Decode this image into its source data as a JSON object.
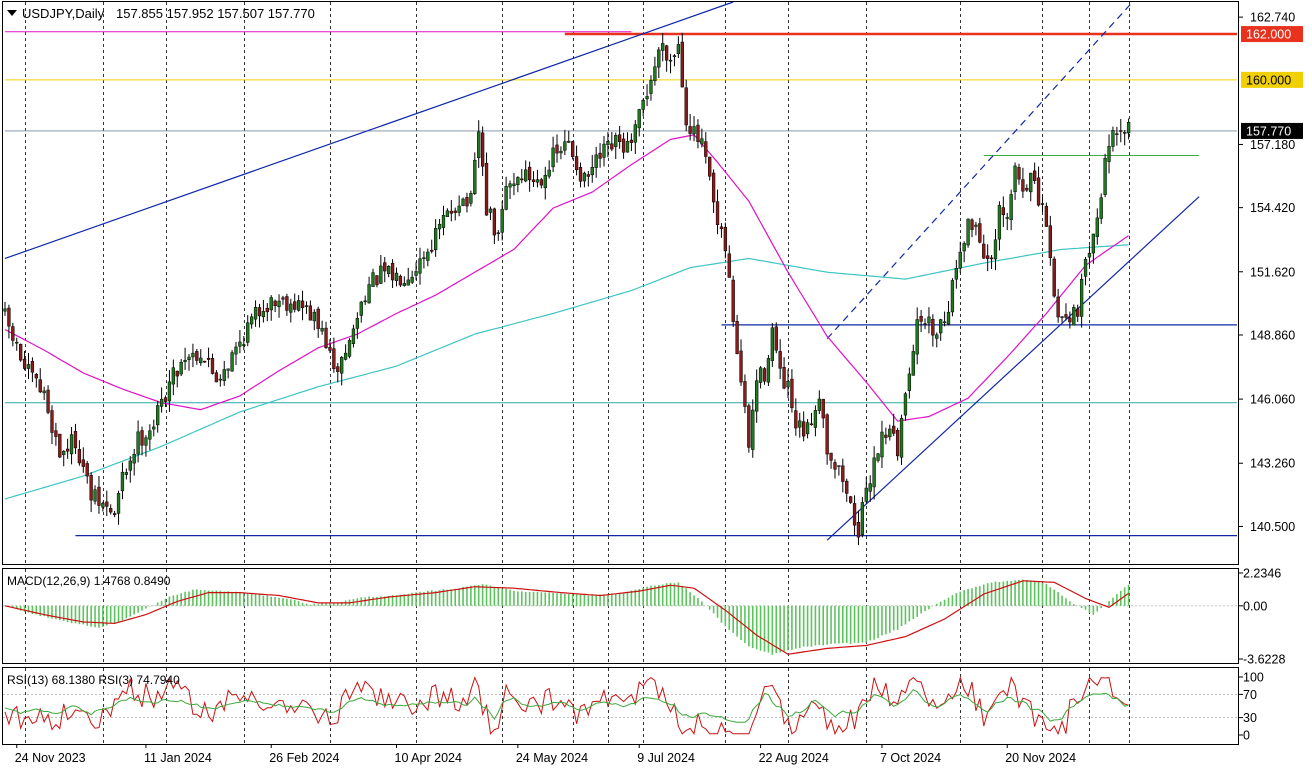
{
  "header": {
    "symbol_label": "USDJPY,Daily",
    "ohlc_label": "157.855 157.952 157.507 157.770"
  },
  "colors": {
    "candle_up": "#1f7a1f",
    "candle_down": "#8b1a1a",
    "ma_fast": "#e011c8",
    "ma_slow": "#3fc4c4",
    "trendline": "#1028a8",
    "resistance_red": "#e8321e",
    "level_yellow": "#f0d000",
    "price_badge": "#000000",
    "macd_hist": "#5cc45c",
    "macd_signal": "#cc1111",
    "rsi_13": "#cc1111",
    "rsi_3": "#3aa83a"
  },
  "panels": {
    "macd_label": "MACD(12,26,9) 1.4768 0.8490",
    "rsi_label": "RSI(13) 68.1380  RSI(3) 74.7940"
  },
  "chart_data": [
    {
      "type": "candlestick",
      "symbol": "USDJPY",
      "timeframe": "Daily",
      "last_price": 157.77,
      "ylim": [
        138.86,
        163.4
      ],
      "y_ticks": [
        "162.740",
        "157.180",
        "154.420",
        "151.620",
        "148.860",
        "146.060",
        "143.260",
        "140.500"
      ],
      "x_ticks": [
        "24 Nov 2023",
        "11 Jan 2024",
        "26 Feb 2024",
        "10 Apr 2024",
        "24 May 2024",
        "9 Jul 2024",
        "22 Aug 2024",
        "7 Oct 2024",
        "20 Nov 2024"
      ],
      "price_labels": [
        {
          "text": "162.000",
          "value": 162.0,
          "color": "#e8321e",
          "text_color": "#ffffff"
        },
        {
          "text": "160.000",
          "value": 160.0,
          "color": "#f0d000",
          "text_color": "#000000"
        },
        {
          "text": "157.770",
          "value": 157.77,
          "color": "#000000",
          "text_color": "#ffffff"
        }
      ],
      "anchors": [
        {
          "d": 0,
          "c": 149.6
        },
        {
          "d": 5,
          "c": 147.4
        },
        {
          "d": 10,
          "c": 146.2
        },
        {
          "d": 14,
          "c": 143.7
        },
        {
          "d": 18,
          "c": 144.3
        },
        {
          "d": 22,
          "c": 141.8
        },
        {
          "d": 25,
          "c": 141.4
        },
        {
          "d": 28,
          "c": 141.0
        },
        {
          "d": 30,
          "c": 142.6
        },
        {
          "d": 34,
          "c": 144.3
        },
        {
          "d": 38,
          "c": 145.0
        },
        {
          "d": 42,
          "c": 146.8
        },
        {
          "d": 46,
          "c": 148.0
        },
        {
          "d": 50,
          "c": 148.1
        },
        {
          "d": 54,
          "c": 147.0
        },
        {
          "d": 58,
          "c": 147.9
        },
        {
          "d": 62,
          "c": 149.2
        },
        {
          "d": 66,
          "c": 150.2
        },
        {
          "d": 70,
          "c": 150.4
        },
        {
          "d": 74,
          "c": 150.3
        },
        {
          "d": 78,
          "c": 149.8
        },
        {
          "d": 82,
          "c": 148.6
        },
        {
          "d": 84,
          "c": 147.1
        },
        {
          "d": 88,
          "c": 148.5
        },
        {
          "d": 92,
          "c": 150.8
        },
        {
          "d": 96,
          "c": 151.5
        },
        {
          "d": 100,
          "c": 151.4
        },
        {
          "d": 104,
          "c": 151.7
        },
        {
          "d": 108,
          "c": 152.6
        },
        {
          "d": 112,
          "c": 153.8
        },
        {
          "d": 116,
          "c": 154.8
        },
        {
          "d": 119,
          "c": 154.6
        },
        {
          "d": 121,
          "c": 157.7
        },
        {
          "d": 123,
          "c": 154.4
        },
        {
          "d": 126,
          "c": 153.0
        },
        {
          "d": 128,
          "c": 155.3
        },
        {
          "d": 132,
          "c": 155.9
        },
        {
          "d": 136,
          "c": 155.6
        },
        {
          "d": 140,
          "c": 156.6
        },
        {
          "d": 144,
          "c": 157.2
        },
        {
          "d": 148,
          "c": 155.5
        },
        {
          "d": 152,
          "c": 156.6
        },
        {
          "d": 156,
          "c": 157.2
        },
        {
          "d": 160,
          "c": 157.0
        },
        {
          "d": 163,
          "c": 159.0
        },
        {
          "d": 166,
          "c": 160.6
        },
        {
          "d": 168,
          "c": 161.7
        },
        {
          "d": 170,
          "c": 160.9
        },
        {
          "d": 172,
          "c": 161.6
        },
        {
          "d": 174,
          "c": 158.4
        },
        {
          "d": 176,
          "c": 157.6
        },
        {
          "d": 178,
          "c": 157.1
        },
        {
          "d": 180,
          "c": 155.5
        },
        {
          "d": 182,
          "c": 153.5
        },
        {
          "d": 184,
          "c": 152.6
        },
        {
          "d": 186,
          "c": 149.6
        },
        {
          "d": 188,
          "c": 146.8
        },
        {
          "d": 190,
          "c": 144.0
        },
        {
          "d": 192,
          "c": 146.9
        },
        {
          "d": 194,
          "c": 147.2
        },
        {
          "d": 196,
          "c": 149.1
        },
        {
          "d": 198,
          "c": 147.0
        },
        {
          "d": 200,
          "c": 146.4
        },
        {
          "d": 202,
          "c": 144.7
        },
        {
          "d": 205,
          "c": 144.6
        },
        {
          "d": 208,
          "c": 146.4
        },
        {
          "d": 210,
          "c": 144.0
        },
        {
          "d": 212,
          "c": 143.2
        },
        {
          "d": 214,
          "c": 142.6
        },
        {
          "d": 216,
          "c": 141.3
        },
        {
          "d": 218,
          "c": 140.4
        },
        {
          "d": 220,
          "c": 141.8
        },
        {
          "d": 222,
          "c": 143.5
        },
        {
          "d": 224,
          "c": 144.4
        },
        {
          "d": 226,
          "c": 145.0
        },
        {
          "d": 228,
          "c": 143.6
        },
        {
          "d": 230,
          "c": 146.5
        },
        {
          "d": 232,
          "c": 148.5
        },
        {
          "d": 234,
          "c": 149.7
        },
        {
          "d": 237,
          "c": 149.1
        },
        {
          "d": 240,
          "c": 149.6
        },
        {
          "d": 242,
          "c": 151.0
        },
        {
          "d": 244,
          "c": 152.8
        },
        {
          "d": 246,
          "c": 153.6
        },
        {
          "d": 248,
          "c": 153.7
        },
        {
          "d": 250,
          "c": 152.5
        },
        {
          "d": 252,
          "c": 151.8
        },
        {
          "d": 254,
          "c": 154.1
        },
        {
          "d": 256,
          "c": 153.8
        },
        {
          "d": 258,
          "c": 156.1
        },
        {
          "d": 260,
          "c": 155.3
        },
        {
          "d": 262,
          "c": 155.8
        },
        {
          "d": 264,
          "c": 154.6
        },
        {
          "d": 266,
          "c": 153.8
        },
        {
          "d": 268,
          "c": 150.4
        },
        {
          "d": 270,
          "c": 149.6
        },
        {
          "d": 272,
          "c": 149.8
        },
        {
          "d": 274,
          "c": 150.1
        },
        {
          "d": 276,
          "c": 151.8
        },
        {
          "d": 278,
          "c": 153.7
        },
        {
          "d": 280,
          "c": 155.0
        },
        {
          "d": 282,
          "c": 157.5
        },
        {
          "d": 284,
          "c": 157.2
        },
        {
          "d": 286,
          "c": 157.9
        },
        {
          "d": 287,
          "c": 157.77
        }
      ],
      "ma_fast": [
        {
          "d": 0,
          "v": 149.1
        },
        {
          "d": 10,
          "v": 148.2
        },
        {
          "d": 20,
          "v": 147.2
        },
        {
          "d": 30,
          "v": 146.5
        },
        {
          "d": 40,
          "v": 145.9
        },
        {
          "d": 50,
          "v": 145.6
        },
        {
          "d": 60,
          "v": 146.2
        },
        {
          "d": 70,
          "v": 147.3
        },
        {
          "d": 80,
          "v": 148.3
        },
        {
          "d": 90,
          "v": 148.9
        },
        {
          "d": 100,
          "v": 149.8
        },
        {
          "d": 110,
          "v": 150.6
        },
        {
          "d": 120,
          "v": 151.6
        },
        {
          "d": 130,
          "v": 152.6
        },
        {
          "d": 140,
          "v": 154.4
        },
        {
          "d": 150,
          "v": 155.1
        },
        {
          "d": 160,
          "v": 156.3
        },
        {
          "d": 170,
          "v": 157.4
        },
        {
          "d": 176,
          "v": 157.6
        },
        {
          "d": 182,
          "v": 156.4
        },
        {
          "d": 190,
          "v": 154.7
        },
        {
          "d": 200,
          "v": 151.6
        },
        {
          "d": 210,
          "v": 148.8
        },
        {
          "d": 220,
          "v": 146.8
        },
        {
          "d": 228,
          "v": 145.1
        },
        {
          "d": 236,
          "v": 145.3
        },
        {
          "d": 246,
          "v": 146.1
        },
        {
          "d": 256,
          "v": 147.9
        },
        {
          "d": 266,
          "v": 149.8
        },
        {
          "d": 276,
          "v": 151.9
        },
        {
          "d": 287,
          "v": 153.2
        }
      ],
      "ma_slow": [
        {
          "d": 0,
          "v": 141.7
        },
        {
          "d": 20,
          "v": 142.7
        },
        {
          "d": 40,
          "v": 144.0
        },
        {
          "d": 60,
          "v": 145.5
        },
        {
          "d": 80,
          "v": 146.6
        },
        {
          "d": 100,
          "v": 147.5
        },
        {
          "d": 120,
          "v": 148.9
        },
        {
          "d": 140,
          "v": 149.8
        },
        {
          "d": 160,
          "v": 150.8
        },
        {
          "d": 175,
          "v": 151.8
        },
        {
          "d": 190,
          "v": 152.2
        },
        {
          "d": 210,
          "v": 151.6
        },
        {
          "d": 230,
          "v": 151.3
        },
        {
          "d": 250,
          "v": 152.0
        },
        {
          "d": 270,
          "v": 152.6
        },
        {
          "d": 287,
          "v": 152.8
        }
      ],
      "horizontal_levels": [
        {
          "value": 162.0,
          "color": "#e8321e",
          "from_d": 143,
          "to_d": 320,
          "width": 2.5
        },
        {
          "value": 160.0,
          "color": "#f0d000",
          "from_d": 0,
          "to_d": 320,
          "width": 1
        },
        {
          "value": 157.77,
          "color": "#7a8aa0",
          "from_d": 0,
          "to_d": 320,
          "width": 0.8
        },
        {
          "value": 162.1,
          "color": "#e011c8",
          "from_d": 0,
          "to_d": 160,
          "width": 1
        },
        {
          "value": 156.7,
          "color": "#3fae3f",
          "from_d": 250,
          "to_d": 305,
          "width": 1
        },
        {
          "value": 149.3,
          "color": "#1028a8",
          "from_d": 183,
          "to_d": 320,
          "width": 1.2
        },
        {
          "value": 145.9,
          "color": "#2aa8a8",
          "from_d": 0,
          "to_d": 320,
          "width": 1
        },
        {
          "value": 140.1,
          "color": "#1028a8",
          "from_d": 18,
          "to_d": 320,
          "width": 1.2
        }
      ],
      "trendlines": [
        {
          "d1": 0,
          "v1": 152.2,
          "d2": 186,
          "v2": 163.4,
          "color": "#1028a8",
          "dash": false
        },
        {
          "d1": 210,
          "v1": 148.7,
          "d2": 288,
          "v2": 163.4,
          "color": "#1028a8",
          "dash": true
        },
        {
          "d1": 210,
          "v1": 139.9,
          "d2": 305,
          "v2": 154.9,
          "color": "#1028a8",
          "dash": false
        }
      ],
      "vertical_markers_d": [
        5,
        25,
        41,
        61,
        83,
        105,
        127,
        145,
        154,
        163,
        184,
        200,
        220,
        244,
        265,
        277,
        287
      ]
    },
    {
      "type": "bar",
      "name": "MACD",
      "label": "MACD(12,26,9) 1.4768 0.8490",
      "macd": 1.4768,
      "signal": 0.849,
      "ylim": [
        -3.6228,
        2.2346
      ],
      "y_ticks": [
        "2.2346",
        "0.00",
        "-3.6228"
      ],
      "hist": [
        {
          "d": 0,
          "v": 0.0
        },
        {
          "d": 8,
          "v": -0.6
        },
        {
          "d": 16,
          "v": -1.1
        },
        {
          "d": 24,
          "v": -1.5
        },
        {
          "d": 30,
          "v": -1.0
        },
        {
          "d": 36,
          "v": -0.2
        },
        {
          "d": 42,
          "v": 0.6
        },
        {
          "d": 48,
          "v": 1.1
        },
        {
          "d": 56,
          "v": 1.0
        },
        {
          "d": 64,
          "v": 0.8
        },
        {
          "d": 72,
          "v": 0.5
        },
        {
          "d": 78,
          "v": 0.1
        },
        {
          "d": 84,
          "v": 0.2
        },
        {
          "d": 92,
          "v": 0.6
        },
        {
          "d": 100,
          "v": 0.7
        },
        {
          "d": 108,
          "v": 1.0
        },
        {
          "d": 116,
          "v": 1.2
        },
        {
          "d": 122,
          "v": 1.5
        },
        {
          "d": 130,
          "v": 1.0
        },
        {
          "d": 140,
          "v": 0.9
        },
        {
          "d": 150,
          "v": 0.7
        },
        {
          "d": 158,
          "v": 0.9
        },
        {
          "d": 166,
          "v": 1.4
        },
        {
          "d": 172,
          "v": 1.6
        },
        {
          "d": 178,
          "v": 0.3
        },
        {
          "d": 184,
          "v": -1.4
        },
        {
          "d": 190,
          "v": -2.8
        },
        {
          "d": 196,
          "v": -3.3
        },
        {
          "d": 204,
          "v": -2.8
        },
        {
          "d": 212,
          "v": -2.6
        },
        {
          "d": 220,
          "v": -2.5
        },
        {
          "d": 228,
          "v": -1.6
        },
        {
          "d": 236,
          "v": -0.2
        },
        {
          "d": 244,
          "v": 1.0
        },
        {
          "d": 252,
          "v": 1.6
        },
        {
          "d": 260,
          "v": 1.8
        },
        {
          "d": 266,
          "v": 1.5
        },
        {
          "d": 272,
          "v": 0.3
        },
        {
          "d": 278,
          "v": -0.6
        },
        {
          "d": 282,
          "v": 0.3
        },
        {
          "d": 287,
          "v": 1.48
        }
      ],
      "signal_line": [
        {
          "d": 0,
          "v": 0.0
        },
        {
          "d": 10,
          "v": -0.6
        },
        {
          "d": 20,
          "v": -1.1
        },
        {
          "d": 28,
          "v": -1.2
        },
        {
          "d": 36,
          "v": -0.6
        },
        {
          "d": 44,
          "v": 0.3
        },
        {
          "d": 52,
          "v": 0.9
        },
        {
          "d": 60,
          "v": 0.9
        },
        {
          "d": 70,
          "v": 0.7
        },
        {
          "d": 80,
          "v": 0.2
        },
        {
          "d": 88,
          "v": 0.2
        },
        {
          "d": 98,
          "v": 0.6
        },
        {
          "d": 110,
          "v": 0.9
        },
        {
          "d": 120,
          "v": 1.3
        },
        {
          "d": 130,
          "v": 1.2
        },
        {
          "d": 142,
          "v": 0.9
        },
        {
          "d": 152,
          "v": 0.7
        },
        {
          "d": 162,
          "v": 1.0
        },
        {
          "d": 170,
          "v": 1.4
        },
        {
          "d": 176,
          "v": 1.2
        },
        {
          "d": 184,
          "v": -0.3
        },
        {
          "d": 192,
          "v": -2.0
        },
        {
          "d": 200,
          "v": -3.3
        },
        {
          "d": 210,
          "v": -2.9
        },
        {
          "d": 220,
          "v": -2.7
        },
        {
          "d": 230,
          "v": -2.1
        },
        {
          "d": 240,
          "v": -0.9
        },
        {
          "d": 250,
          "v": 0.8
        },
        {
          "d": 260,
          "v": 1.7
        },
        {
          "d": 268,
          "v": 1.6
        },
        {
          "d": 276,
          "v": 0.5
        },
        {
          "d": 282,
          "v": -0.1
        },
        {
          "d": 287,
          "v": 0.85
        }
      ]
    },
    {
      "type": "line",
      "name": "RSI",
      "label": "RSI(13) 68.1380  RSI(3) 74.7940",
      "ylim": [
        0,
        100
      ],
      "y_ticks": [
        "100",
        "70",
        "30",
        "0"
      ],
      "levels": [
        70,
        30
      ],
      "rsi13_last": 68.138,
      "rsi3_last": 74.794
    }
  ]
}
